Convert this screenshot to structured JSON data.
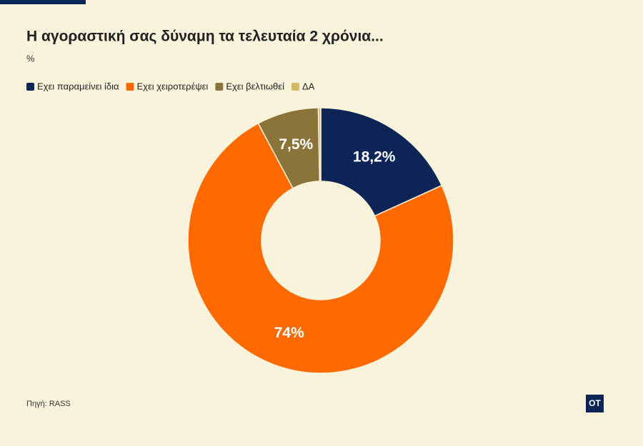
{
  "chart_data": {
    "type": "donut",
    "title": "Η αγοραστική σας δύναμη τα τελευταία 2 χρόνια...",
    "subtitle": "%",
    "categories": [
      "Εχει παραμείνει ίδια",
      "Εχει χειροτερέψει",
      "Εχει βελτιωθεί",
      "ΔΑ"
    ],
    "values": [
      18.2,
      74,
      7.5,
      0.3
    ],
    "value_labels": [
      "18,2%",
      "74%",
      "7,5%",
      null
    ],
    "colors": [
      "#0d2457",
      "#ff6a00",
      "#8b7439",
      "#d4b86a"
    ],
    "source": "Πηγή: RASS",
    "logo": "OT"
  }
}
